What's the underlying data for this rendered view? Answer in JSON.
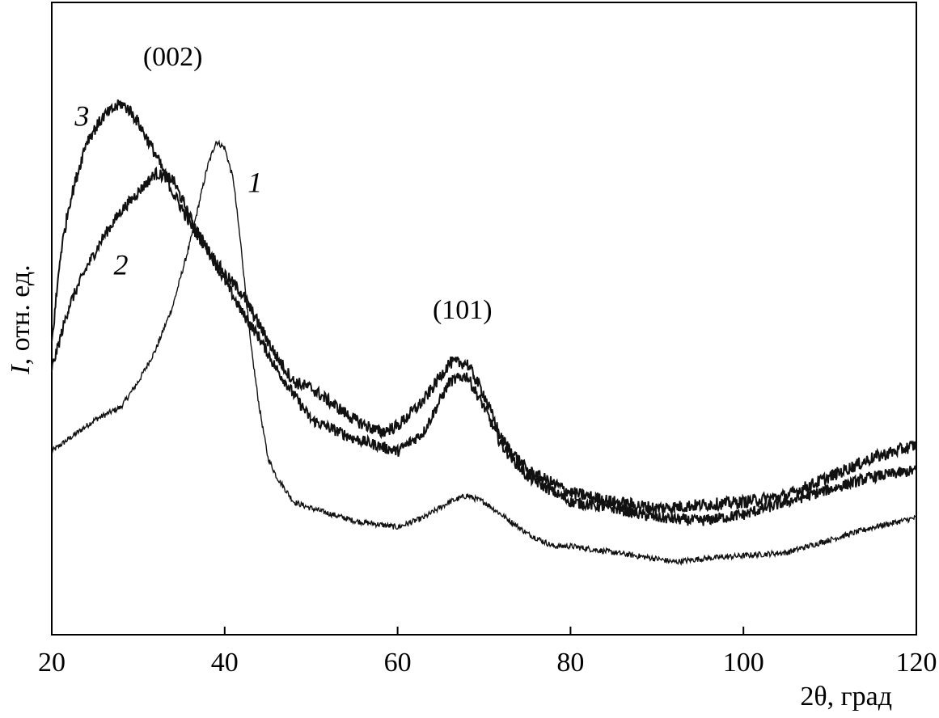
{
  "chart_data": {
    "type": "line",
    "xlabel": "2θ, град",
    "ylabel_italic": "I",
    "ylabel_rest": ", отн. ед.",
    "xlim": [
      20,
      120
    ],
    "ylim": [
      0,
      100
    ],
    "xticks": [
      20,
      40,
      60,
      80,
      100,
      120
    ],
    "grid": false,
    "peak_labels": [
      {
        "text": "(002)",
        "x": 34.0,
        "y": 90
      },
      {
        "text": "(101)",
        "x": 67.5,
        "y": 50
      }
    ],
    "series": [
      {
        "name": "1",
        "x": [
          20,
          22,
          25,
          28,
          30,
          32,
          34,
          36,
          37,
          38,
          39,
          40,
          41,
          42,
          43,
          44,
          45,
          46,
          47,
          48,
          50,
          55,
          60,
          63,
          66,
          68,
          70,
          72,
          75,
          78,
          80,
          85,
          90,
          92,
          95,
          100,
          105,
          110,
          115,
          120
        ],
        "values": [
          29,
          31,
          34,
          36,
          40,
          45,
          52,
          62,
          68,
          74,
          78,
          77,
          72,
          60,
          46,
          36,
          28,
          25,
          23,
          21,
          20,
          18,
          17,
          18.5,
          21,
          22,
          21,
          19,
          16,
          14,
          14,
          13,
          12,
          11.5,
          12,
          12.5,
          13,
          15,
          17,
          18.5
        ]
      },
      {
        "name": "2",
        "x": [
          20,
          22,
          24,
          26,
          28,
          30,
          32,
          34,
          36,
          38,
          40,
          42,
          44,
          46,
          48,
          50,
          55,
          60,
          63,
          66,
          68,
          70,
          72,
          75,
          80,
          85,
          90,
          95,
          100,
          105,
          110,
          115,
          120
        ],
        "values": [
          42,
          52,
          58,
          63,
          67,
          70,
          73,
          72,
          66,
          61,
          56,
          51,
          47,
          42,
          38,
          34,
          31,
          29,
          32,
          40,
          41,
          36,
          30,
          25,
          21,
          20,
          18.5,
          18,
          19,
          21,
          23,
          25,
          26
        ]
      },
      {
        "name": "3",
        "x": [
          20,
          21,
          22,
          24,
          26,
          28,
          29,
          30,
          32,
          34,
          36,
          38,
          40,
          42,
          44,
          46,
          48,
          50,
          55,
          58,
          60,
          63,
          66,
          68,
          70,
          72,
          75,
          80,
          85,
          90,
          95,
          100,
          105,
          110,
          115,
          120
        ],
        "values": [
          46,
          60,
          68,
          78,
          82,
          84,
          83,
          81,
          76,
          70,
          65,
          61,
          57,
          54,
          49,
          44,
          40,
          39,
          34,
          32,
          33,
          37,
          43,
          43,
          38,
          31,
          26,
          22.5,
          21,
          20,
          20.5,
          21,
          22,
          25,
          28,
          30
        ]
      }
    ]
  }
}
